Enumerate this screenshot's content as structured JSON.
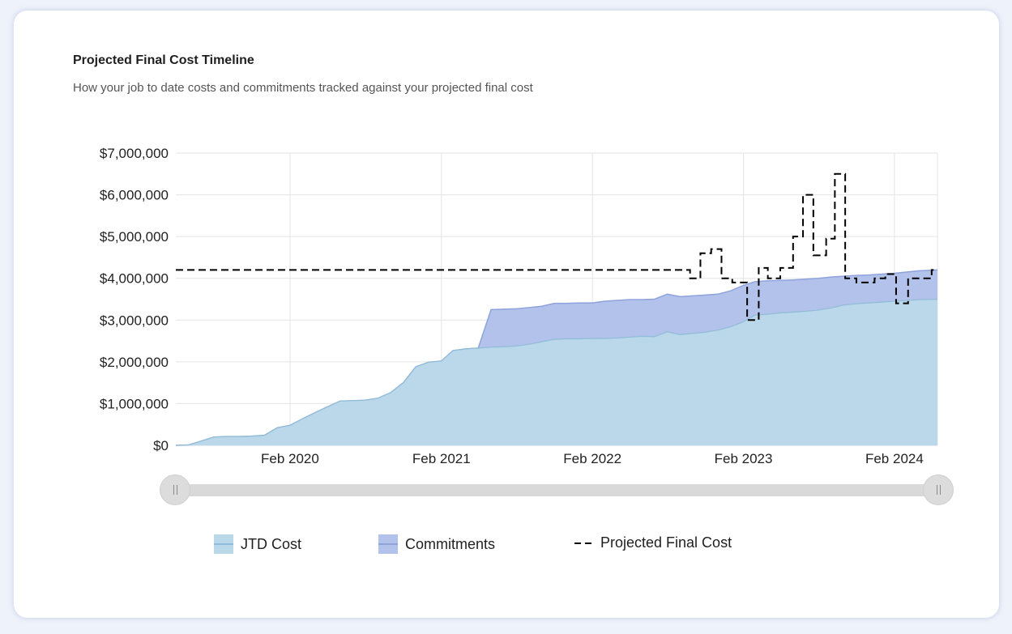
{
  "header": {
    "title": "Projected Final Cost Timeline",
    "subtitle": "How your job to date costs and commitments tracked against your projected final cost"
  },
  "legend": {
    "jtd_label": "JTD Cost",
    "commitments_label": "Commitments",
    "pfc_label": "Projected Final Cost"
  },
  "colors": {
    "jtd_fill": "#bad8e9",
    "jtd_line": "#8fbcd8",
    "commitments_fill": "#b3c2ea",
    "commitments_line": "#8ea3dd",
    "pfc_line": "#000000",
    "grid": "#e4e4e4"
  },
  "range_slider": {
    "start": 0,
    "end": 1
  },
  "chart_data": {
    "type": "area",
    "x_axis_type": "date",
    "x_range": [
      "2019-05-01",
      "2024-05-15"
    ],
    "ylim": [
      0,
      7000000
    ],
    "y_ticks": [
      0,
      1000000,
      2000000,
      3000000,
      4000000,
      5000000,
      6000000,
      7000000
    ],
    "y_tick_labels": [
      "$0",
      "$1,000,000",
      "$2,000,000",
      "$3,000,000",
      "$4,000,000",
      "$5,000,000",
      "$6,000,000",
      "$7,000,000"
    ],
    "x_ticks": [
      "2020-02-01",
      "2021-02-01",
      "2022-02-01",
      "2023-02-01",
      "2024-02-01"
    ],
    "x_tick_labels": [
      "Feb 2020",
      "Feb 2021",
      "Feb 2022",
      "Feb 2023",
      "Feb 2024"
    ],
    "grid": true,
    "legend_position": "bottom",
    "series": [
      {
        "name": "JTD Cost",
        "type": "area",
        "points": [
          [
            "2019-05-01",
            0
          ],
          [
            "2019-06-01",
            10000
          ],
          [
            "2019-07-01",
            100000
          ],
          [
            "2019-08-01",
            200000
          ],
          [
            "2019-09-01",
            210000
          ],
          [
            "2019-10-01",
            210000
          ],
          [
            "2019-11-01",
            220000
          ],
          [
            "2019-12-01",
            240000
          ],
          [
            "2020-01-01",
            420000
          ],
          [
            "2020-02-01",
            480000
          ],
          [
            "2020-03-01",
            630000
          ],
          [
            "2020-04-01",
            780000
          ],
          [
            "2020-05-01",
            920000
          ],
          [
            "2020-06-01",
            1060000
          ],
          [
            "2020-07-01",
            1070000
          ],
          [
            "2020-08-01",
            1080000
          ],
          [
            "2020-09-01",
            1130000
          ],
          [
            "2020-10-01",
            1260000
          ],
          [
            "2020-11-01",
            1500000
          ],
          [
            "2020-12-01",
            1880000
          ],
          [
            "2021-01-01",
            1990000
          ],
          [
            "2021-02-01",
            2020000
          ],
          [
            "2021-03-01",
            2270000
          ],
          [
            "2021-04-01",
            2310000
          ],
          [
            "2021-05-01",
            2330000
          ],
          [
            "2021-06-01",
            2350000
          ],
          [
            "2021-07-01",
            2360000
          ],
          [
            "2021-08-01",
            2380000
          ],
          [
            "2021-09-01",
            2420000
          ],
          [
            "2021-10-01",
            2480000
          ],
          [
            "2021-11-01",
            2540000
          ],
          [
            "2021-12-01",
            2550000
          ],
          [
            "2022-01-01",
            2550000
          ],
          [
            "2022-02-01",
            2560000
          ],
          [
            "2022-03-01",
            2560000
          ],
          [
            "2022-04-01",
            2570000
          ],
          [
            "2022-05-01",
            2590000
          ],
          [
            "2022-06-01",
            2610000
          ],
          [
            "2022-07-01",
            2600000
          ],
          [
            "2022-08-01",
            2720000
          ],
          [
            "2022-09-01",
            2650000
          ],
          [
            "2022-10-01",
            2680000
          ],
          [
            "2022-11-01",
            2710000
          ],
          [
            "2022-12-01",
            2760000
          ],
          [
            "2023-01-01",
            2840000
          ],
          [
            "2023-02-01",
            2960000
          ],
          [
            "2023-03-01",
            3120000
          ],
          [
            "2023-04-01",
            3140000
          ],
          [
            "2023-05-01",
            3170000
          ],
          [
            "2023-06-01",
            3190000
          ],
          [
            "2023-07-01",
            3210000
          ],
          [
            "2023-08-01",
            3240000
          ],
          [
            "2023-09-01",
            3290000
          ],
          [
            "2023-10-01",
            3360000
          ],
          [
            "2023-11-01",
            3390000
          ],
          [
            "2023-12-01",
            3410000
          ],
          [
            "2024-01-01",
            3430000
          ],
          [
            "2024-02-01",
            3450000
          ],
          [
            "2024-03-01",
            3470000
          ],
          [
            "2024-04-01",
            3490000
          ],
          [
            "2024-05-15",
            3500000
          ]
        ]
      },
      {
        "name": "Commitments",
        "type": "area",
        "points": [
          [
            "2019-05-01",
            0
          ],
          [
            "2019-06-01",
            10000
          ],
          [
            "2019-07-01",
            100000
          ],
          [
            "2019-08-01",
            200000
          ],
          [
            "2019-09-01",
            210000
          ],
          [
            "2019-10-01",
            210000
          ],
          [
            "2019-11-01",
            220000
          ],
          [
            "2019-12-01",
            240000
          ],
          [
            "2020-01-01",
            420000
          ],
          [
            "2020-02-01",
            480000
          ],
          [
            "2020-03-01",
            630000
          ],
          [
            "2020-04-01",
            780000
          ],
          [
            "2020-05-01",
            920000
          ],
          [
            "2020-06-01",
            1060000
          ],
          [
            "2020-07-01",
            1070000
          ],
          [
            "2020-08-01",
            1080000
          ],
          [
            "2020-09-01",
            1130000
          ],
          [
            "2020-10-01",
            1260000
          ],
          [
            "2020-11-01",
            1500000
          ],
          [
            "2020-12-01",
            1880000
          ],
          [
            "2021-01-01",
            1990000
          ],
          [
            "2021-02-01",
            2020000
          ],
          [
            "2021-03-01",
            2270000
          ],
          [
            "2021-04-01",
            2310000
          ],
          [
            "2021-05-01",
            2330000
          ],
          [
            "2021-06-01",
            3250000
          ],
          [
            "2021-07-01",
            3260000
          ],
          [
            "2021-08-01",
            3270000
          ],
          [
            "2021-09-01",
            3300000
          ],
          [
            "2021-10-01",
            3330000
          ],
          [
            "2021-11-01",
            3400000
          ],
          [
            "2021-12-01",
            3400000
          ],
          [
            "2022-01-01",
            3410000
          ],
          [
            "2022-02-01",
            3410000
          ],
          [
            "2022-03-01",
            3450000
          ],
          [
            "2022-04-01",
            3470000
          ],
          [
            "2022-05-01",
            3490000
          ],
          [
            "2022-06-01",
            3490000
          ],
          [
            "2022-07-01",
            3500000
          ],
          [
            "2022-08-01",
            3620000
          ],
          [
            "2022-09-01",
            3560000
          ],
          [
            "2022-10-01",
            3580000
          ],
          [
            "2022-11-01",
            3600000
          ],
          [
            "2022-12-01",
            3620000
          ],
          [
            "2023-01-01",
            3700000
          ],
          [
            "2023-02-01",
            3830000
          ],
          [
            "2023-03-01",
            3920000
          ],
          [
            "2023-04-01",
            3940000
          ],
          [
            "2023-05-01",
            3950000
          ],
          [
            "2023-06-01",
            3960000
          ],
          [
            "2023-07-01",
            3980000
          ],
          [
            "2023-08-01",
            4000000
          ],
          [
            "2023-09-01",
            4030000
          ],
          [
            "2023-10-01",
            4050000
          ],
          [
            "2023-11-01",
            4070000
          ],
          [
            "2023-12-01",
            4080000
          ],
          [
            "2024-01-01",
            4100000
          ],
          [
            "2024-02-01",
            4120000
          ],
          [
            "2024-03-01",
            4150000
          ],
          [
            "2024-04-01",
            4180000
          ],
          [
            "2024-05-15",
            4200000
          ]
        ]
      },
      {
        "name": "Projected Final Cost",
        "type": "step-line",
        "dashed": true,
        "points": [
          [
            "2019-05-01",
            4200000
          ],
          [
            "2022-09-25",
            4200000
          ],
          [
            "2022-09-25",
            4000000
          ],
          [
            "2022-10-20",
            4000000
          ],
          [
            "2022-10-20",
            4600000
          ],
          [
            "2022-11-15",
            4600000
          ],
          [
            "2022-11-15",
            4700000
          ],
          [
            "2022-12-10",
            4700000
          ],
          [
            "2022-12-10",
            4000000
          ],
          [
            "2023-01-05",
            4000000
          ],
          [
            "2023-01-05",
            3900000
          ],
          [
            "2023-02-10",
            3900000
          ],
          [
            "2023-02-10",
            3000000
          ],
          [
            "2023-03-10",
            3000000
          ],
          [
            "2023-03-10",
            4250000
          ],
          [
            "2023-04-01",
            4250000
          ],
          [
            "2023-04-01",
            4000000
          ],
          [
            "2023-05-01",
            4000000
          ],
          [
            "2023-05-01",
            4250000
          ],
          [
            "2023-06-01",
            4250000
          ],
          [
            "2023-06-01",
            5000000
          ],
          [
            "2023-06-25",
            5000000
          ],
          [
            "2023-06-25",
            6000000
          ],
          [
            "2023-07-20",
            6000000
          ],
          [
            "2023-07-20",
            4550000
          ],
          [
            "2023-08-20",
            4550000
          ],
          [
            "2023-08-20",
            4950000
          ],
          [
            "2023-09-10",
            4950000
          ],
          [
            "2023-09-10",
            6500000
          ],
          [
            "2023-10-05",
            6500000
          ],
          [
            "2023-10-05",
            4000000
          ],
          [
            "2023-11-01",
            4000000
          ],
          [
            "2023-11-01",
            3900000
          ],
          [
            "2023-12-15",
            3900000
          ],
          [
            "2023-12-15",
            4000000
          ],
          [
            "2024-01-10",
            4000000
          ],
          [
            "2024-01-10",
            4100000
          ],
          [
            "2024-02-05",
            4100000
          ],
          [
            "2024-02-05",
            3400000
          ],
          [
            "2024-03-05",
            3400000
          ],
          [
            "2024-03-05",
            4000000
          ],
          [
            "2024-05-01",
            4000000
          ],
          [
            "2024-05-01",
            4200000
          ],
          [
            "2024-05-15",
            4200000
          ]
        ]
      }
    ]
  }
}
